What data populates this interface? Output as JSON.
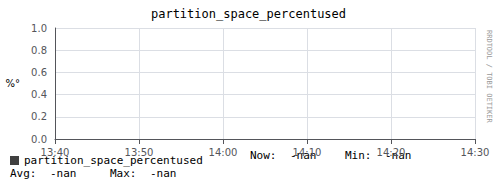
{
  "chart_data": {
    "type": "line",
    "title": "partition_space_percentused",
    "ylabel": "%°",
    "categories": [
      "13:40",
      "13:50",
      "14:00",
      "14:10",
      "14:20",
      "14:30"
    ],
    "series": [
      {
        "name": "partition_space_percentused",
        "color": "#404040",
        "values": [
          null,
          null,
          null,
          null,
          null,
          null
        ]
      }
    ],
    "ylim": [
      0.0,
      1.0
    ],
    "yticks": [
      {
        "value": 0.0,
        "label": "0.0"
      },
      0.2,
      0.4,
      0.6,
      0.8,
      {
        "value": 1.0,
        "label": "1.0"
      }
    ],
    "grid": true,
    "legend": "bottom",
    "annotations": [
      "Now:",
      "-nan",
      "Min:",
      "-nan",
      "Avg:",
      "-nan",
      "Max:",
      "-nan",
      "RRDTOOL / TOBI OETIKER"
    ]
  }
}
